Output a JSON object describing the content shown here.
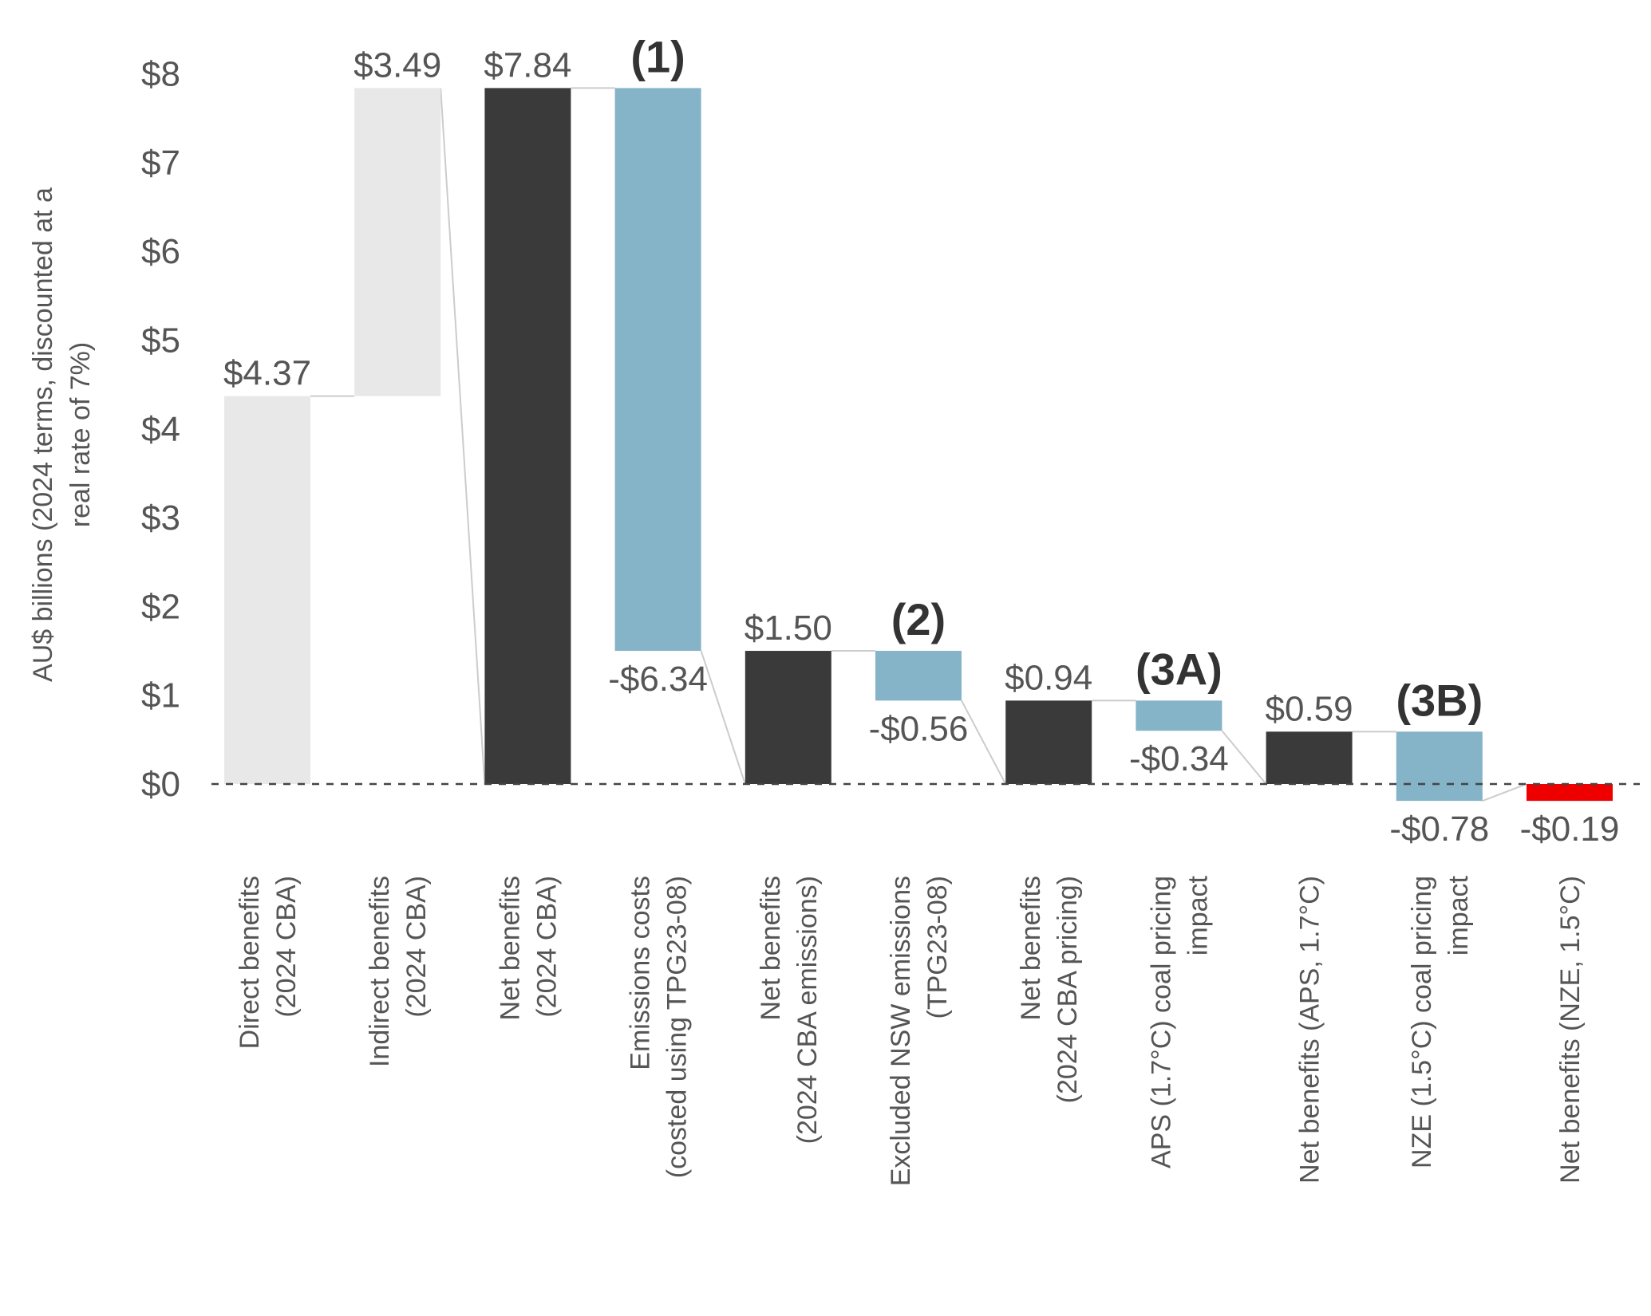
{
  "chart_data": {
    "type": "bar",
    "subtype": "waterfall",
    "ylabel_lines": [
      "AU$ billions (2024 terms, discounted at a",
      "real rate of 7%)"
    ],
    "ylim": [
      0,
      8
    ],
    "yticks": [
      0,
      1,
      2,
      3,
      4,
      5,
      6,
      7,
      8
    ],
    "ytick_labels": [
      "$0",
      "$1",
      "$2",
      "$3",
      "$4",
      "$5",
      "$6",
      "$7",
      "$8"
    ],
    "zero_line": "dashed",
    "grid": false,
    "legend": "none",
    "colors": {
      "gain": "#E8E8E8",
      "total": "#3A3A3A",
      "adjustment": "#85B3C8",
      "negative_total": "#EE0000",
      "connector": "#CCCCCC"
    },
    "bars": [
      {
        "category_lines": [
          "Direct benefits",
          "(2024 CBA)"
        ],
        "kind": "gain",
        "start": 0,
        "end": 4.37,
        "label": "$4.37",
        "label_pos": "above",
        "annotation": ""
      },
      {
        "category_lines": [
          "Indirect benefits",
          "(2024 CBA)"
        ],
        "kind": "gain",
        "start": 4.37,
        "end": 7.84,
        "label": "$3.49",
        "label_pos": "above",
        "annotation": ""
      },
      {
        "category_lines": [
          "Net benefits",
          "(2024 CBA)"
        ],
        "kind": "total",
        "start": 0,
        "end": 7.84,
        "label": "$7.84",
        "label_pos": "above",
        "annotation": ""
      },
      {
        "category_lines": [
          "Emissions costs",
          "(costed using TPG23-08)"
        ],
        "kind": "adjustment",
        "start": 7.84,
        "end": 1.5,
        "label": "-$6.34",
        "label_pos": "below",
        "annotation": "(1)"
      },
      {
        "category_lines": [
          "Net benefits",
          "(2024 CBA emissions)"
        ],
        "kind": "total",
        "start": 0,
        "end": 1.5,
        "label": "$1.50",
        "label_pos": "above",
        "annotation": ""
      },
      {
        "category_lines": [
          "Excluded NSW emissions",
          "(TPG23-08)"
        ],
        "kind": "adjustment",
        "start": 1.5,
        "end": 0.94,
        "label": "-$0.56",
        "label_pos": "below",
        "annotation": "(2)"
      },
      {
        "category_lines": [
          "Net benefits",
          "(2024 CBA pricing)"
        ],
        "kind": "total",
        "start": 0,
        "end": 0.94,
        "label": "$0.94",
        "label_pos": "above",
        "annotation": ""
      },
      {
        "category_lines": [
          "APS (1.7°C) coal pricing",
          "impact"
        ],
        "kind": "adjustment",
        "start": 0.94,
        "end": 0.6,
        "label": "-$0.34",
        "label_pos": "below",
        "annotation": "(3A)"
      },
      {
        "category_lines": [
          "Net benefits (APS, 1.7°C)"
        ],
        "kind": "total",
        "start": 0,
        "end": 0.59,
        "label": "$0.59",
        "label_pos": "above",
        "annotation": ""
      },
      {
        "category_lines": [
          "NZE (1.5°C) coal pricing",
          "impact"
        ],
        "kind": "adjustment",
        "start": 0.59,
        "end": -0.19,
        "label": "-$0.78",
        "label_pos": "below",
        "annotation": "(3B)"
      },
      {
        "category_lines": [
          "Net benefits (NZE, 1.5°C)"
        ],
        "kind": "negative_total",
        "start": 0,
        "end": -0.19,
        "label": "-$0.19",
        "label_pos": "below",
        "annotation": ""
      }
    ]
  }
}
